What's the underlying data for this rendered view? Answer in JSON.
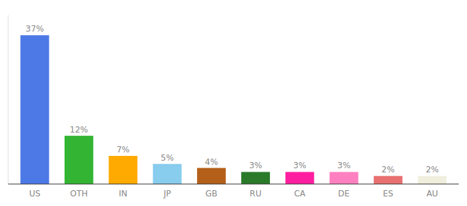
{
  "chart_data": {
    "type": "bar",
    "categories": [
      "US",
      "OTH",
      "IN",
      "JP",
      "GB",
      "RU",
      "CA",
      "DE",
      "ES",
      "AU"
    ],
    "values": [
      37,
      12,
      7,
      5,
      4,
      3,
      3,
      3,
      2,
      2
    ],
    "value_labels": [
      "37%",
      "12%",
      "7%",
      "5%",
      "4%",
      "3%",
      "3%",
      "3%",
      "2%",
      "2%"
    ],
    "colors": [
      "#4d79e6",
      "#33b533",
      "#ffaa00",
      "#88ccee",
      "#b5601a",
      "#2a7a2a",
      "#ff1ea0",
      "#ff80c0",
      "#e87070",
      "#f0eedd"
    ],
    "ylim": [
      0,
      42
    ],
    "data_labels": true,
    "grid": false,
    "tick_labels": "x"
  }
}
